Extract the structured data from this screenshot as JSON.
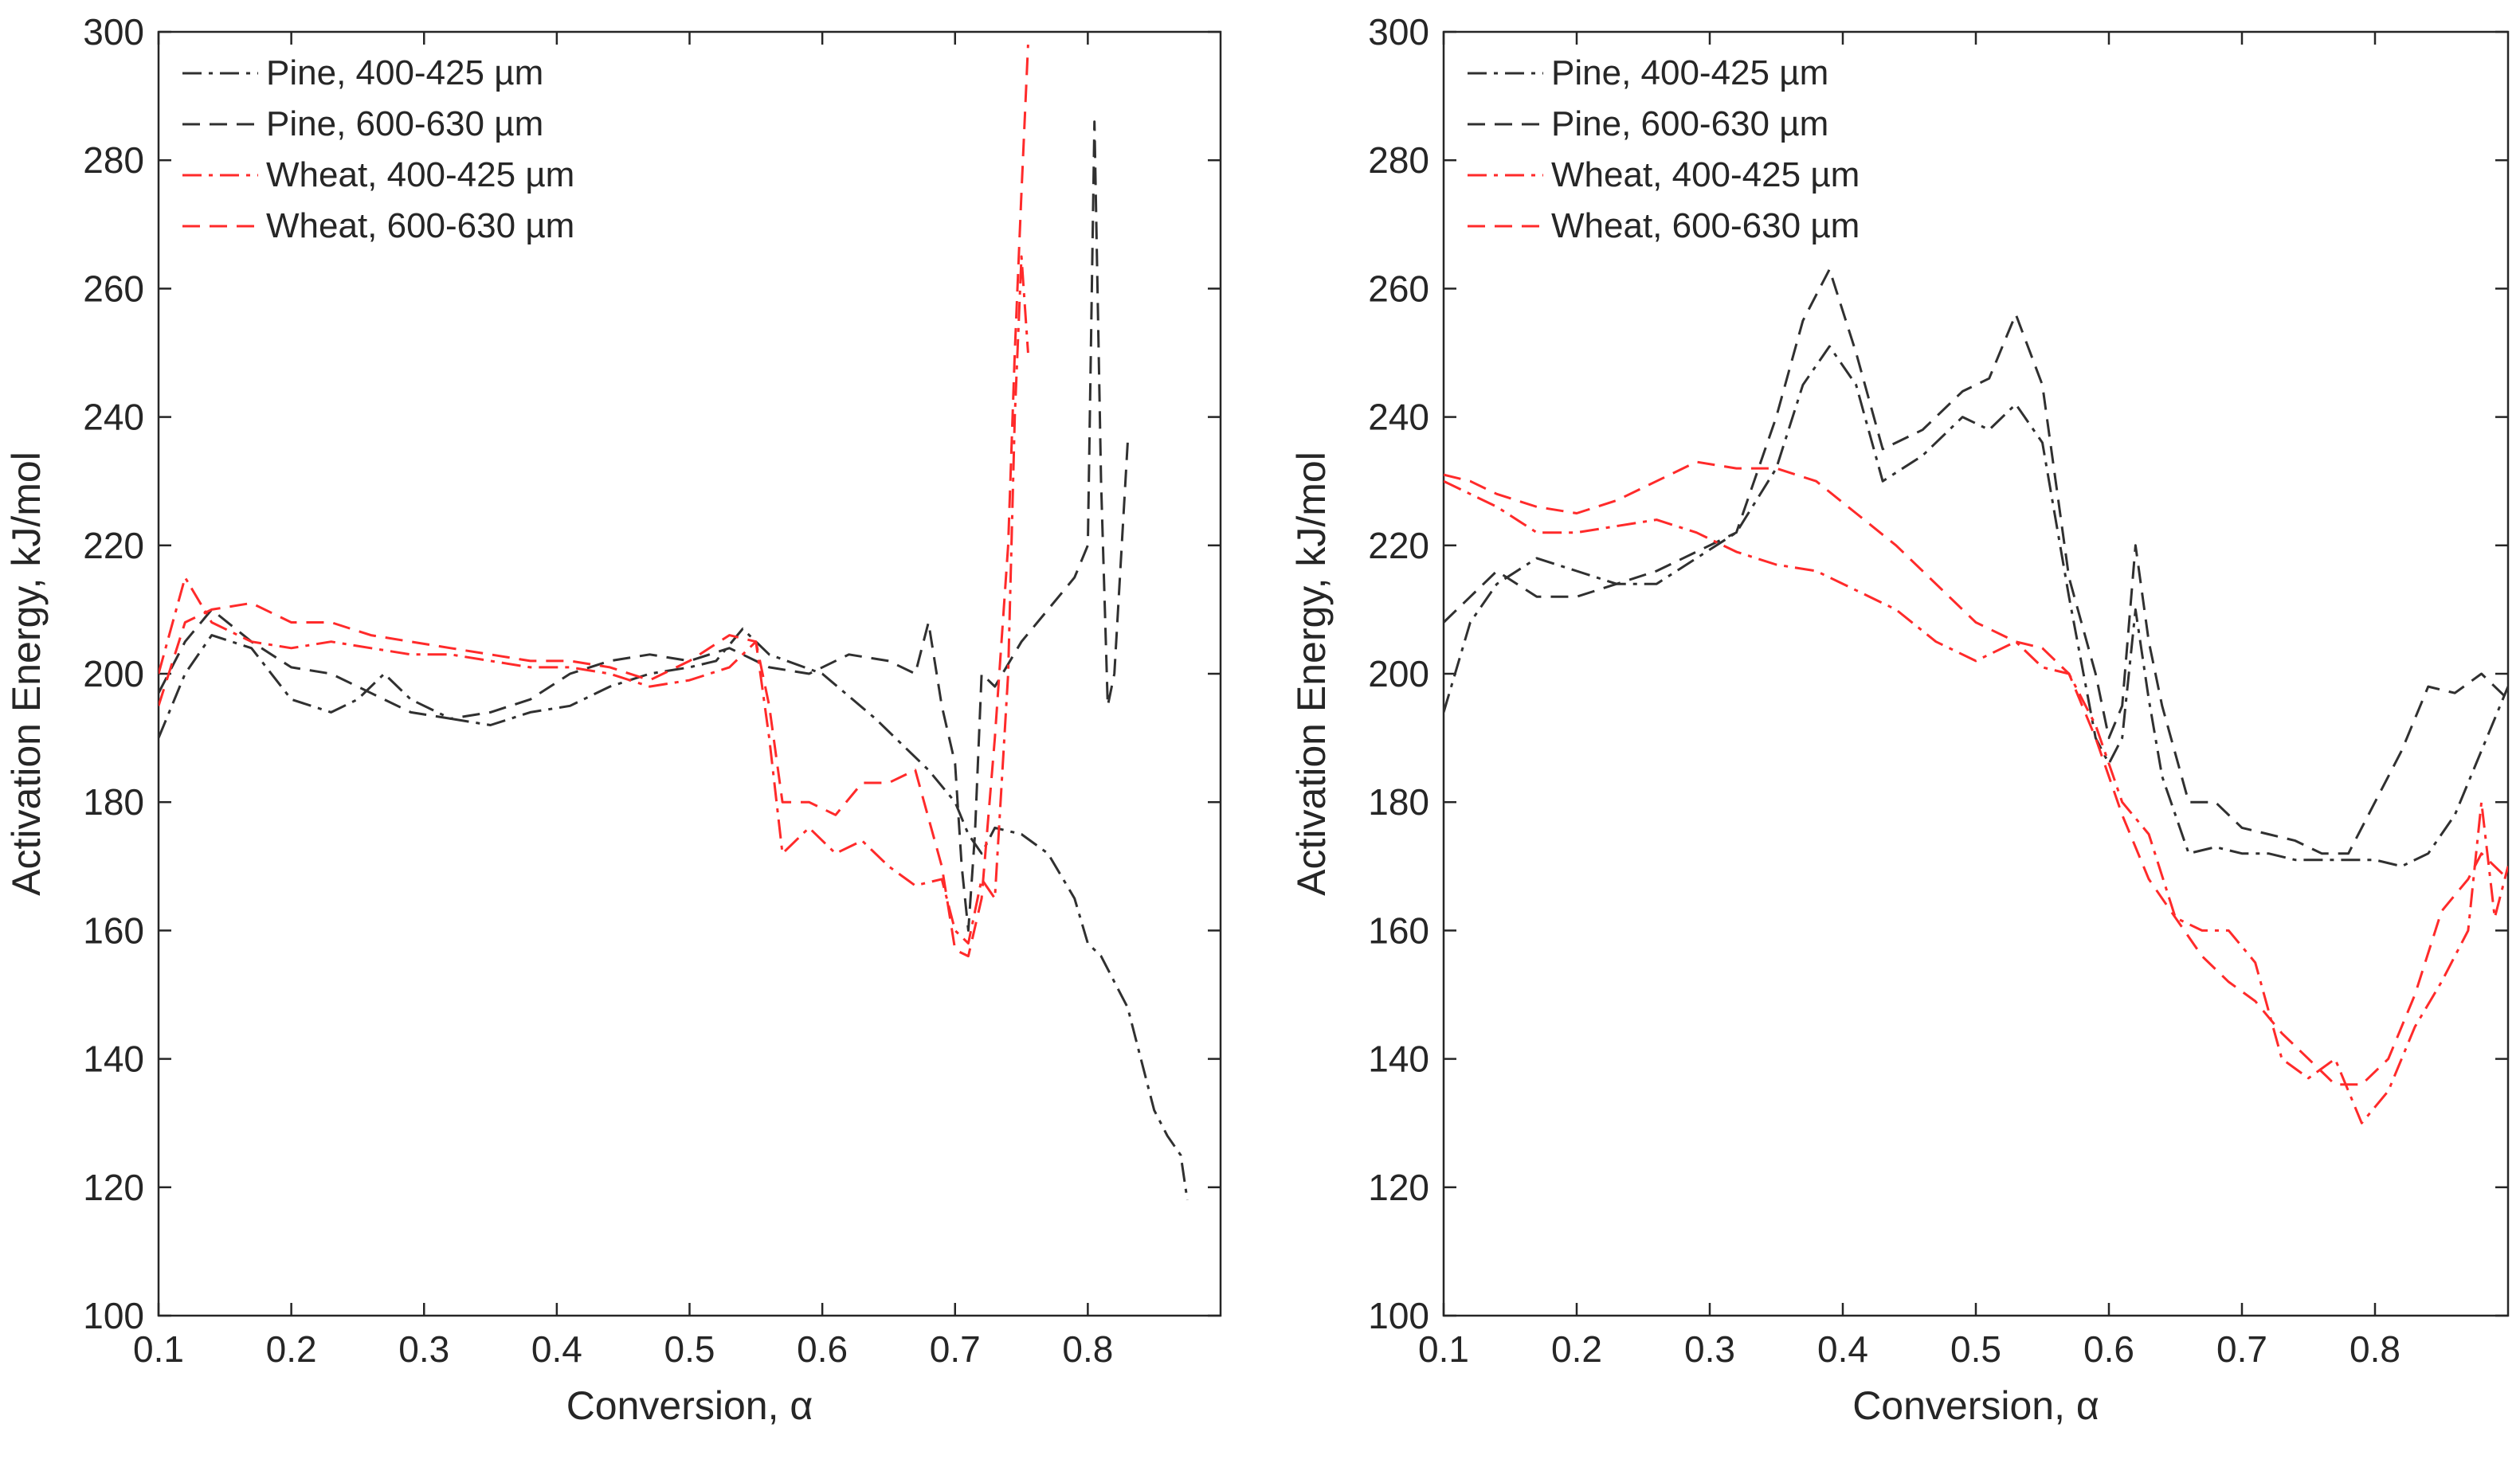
{
  "figure": {
    "colors": {
      "pine": "#303030",
      "wheat": "#ff2a2a",
      "axis": "#262626"
    }
  },
  "chart_data": [
    {
      "type": "line",
      "title": "",
      "xlabel": "Conversion, α",
      "ylabel": "Activation Energy, kJ/mol",
      "xlim": [
        0.1,
        0.9
      ],
      "ylim": [
        100,
        300
      ],
      "xticks": [
        "0.1",
        "0.2",
        "0.3",
        "0.4",
        "0.5",
        "0.6",
        "0.7",
        "0.8"
      ],
      "yticks": [
        "100",
        "120",
        "140",
        "160",
        "180",
        "200",
        "220",
        "240",
        "260",
        "280",
        "300"
      ],
      "legend_position": "top-left",
      "series": [
        {
          "name": "Pine, 400-425 µm",
          "color": "#303030",
          "dash": "dashdot",
          "x": [
            0.1,
            0.12,
            0.14,
            0.17,
            0.2,
            0.23,
            0.25,
            0.27,
            0.29,
            0.32,
            0.35,
            0.38,
            0.41,
            0.44,
            0.47,
            0.5,
            0.52,
            0.54,
            0.56,
            0.6,
            0.64,
            0.68,
            0.7,
            0.71,
            0.72,
            0.73,
            0.75,
            0.77,
            0.79,
            0.8,
            0.81,
            0.82,
            0.83,
            0.84,
            0.85,
            0.86,
            0.87,
            0.875
          ],
          "y": [
            190,
            200,
            206,
            204,
            196,
            194,
            196,
            200,
            196,
            193,
            192,
            194,
            195,
            198,
            200,
            201,
            202,
            207,
            203,
            200,
            193,
            185,
            180,
            175,
            172,
            176,
            175,
            172,
            165,
            158,
            156,
            152,
            148,
            140,
            132,
            128,
            125,
            118
          ]
        },
        {
          "name": "Pine, 600-630 µm",
          "color": "#303030",
          "dash": "dashed",
          "x": [
            0.1,
            0.12,
            0.14,
            0.17,
            0.2,
            0.23,
            0.26,
            0.29,
            0.32,
            0.35,
            0.38,
            0.41,
            0.44,
            0.47,
            0.5,
            0.53,
            0.56,
            0.59,
            0.62,
            0.65,
            0.67,
            0.68,
            0.69,
            0.7,
            0.705,
            0.71,
            0.715,
            0.72,
            0.73,
            0.75,
            0.77,
            0.79,
            0.8,
            0.805,
            0.81,
            0.815,
            0.82,
            0.83
          ],
          "y": [
            197,
            205,
            210,
            205,
            201,
            200,
            197,
            194,
            193,
            194,
            196,
            200,
            202,
            203,
            202,
            204,
            201,
            200,
            203,
            202,
            200,
            208,
            195,
            186,
            170,
            160,
            175,
            200,
            198,
            205,
            210,
            215,
            220,
            286,
            230,
            195,
            200,
            236
          ]
        },
        {
          "name": "Wheat, 400-425 µm",
          "color": "#ff2a2a",
          "dash": "dashdot",
          "x": [
            0.1,
            0.12,
            0.14,
            0.17,
            0.2,
            0.23,
            0.26,
            0.29,
            0.32,
            0.35,
            0.38,
            0.41,
            0.44,
            0.47,
            0.5,
            0.53,
            0.55,
            0.56,
            0.57,
            0.59,
            0.61,
            0.63,
            0.65,
            0.67,
            0.69,
            0.7,
            0.71,
            0.72,
            0.73,
            0.74,
            0.745,
            0.75,
            0.755
          ],
          "y": [
            200,
            215,
            208,
            205,
            204,
            205,
            204,
            203,
            203,
            202,
            201,
            201,
            200,
            198,
            199,
            201,
            205,
            190,
            172,
            176,
            172,
            174,
            170,
            167,
            168,
            160,
            158,
            168,
            165,
            200,
            240,
            265,
            250
          ]
        },
        {
          "name": "Wheat, 600-630 µm",
          "color": "#ff2a2a",
          "dash": "dashed",
          "x": [
            0.1,
            0.12,
            0.14,
            0.17,
            0.2,
            0.23,
            0.26,
            0.29,
            0.32,
            0.35,
            0.38,
            0.41,
            0.44,
            0.47,
            0.5,
            0.53,
            0.55,
            0.56,
            0.57,
            0.59,
            0.61,
            0.63,
            0.65,
            0.67,
            0.69,
            0.7,
            0.71,
            0.72,
            0.73,
            0.74,
            0.745,
            0.75,
            0.755
          ],
          "y": [
            195,
            208,
            210,
            211,
            208,
            208,
            206,
            205,
            204,
            203,
            202,
            202,
            201,
            199,
            202,
            206,
            205,
            195,
            180,
            180,
            178,
            183,
            183,
            185,
            170,
            157,
            156,
            165,
            190,
            220,
            250,
            275,
            298
          ]
        }
      ]
    },
    {
      "type": "line",
      "title": "",
      "xlabel": "Conversion, α",
      "ylabel": "Activation Energy, kJ/mol",
      "xlim": [
        0.1,
        0.9
      ],
      "ylim": [
        100,
        300
      ],
      "xticks": [
        "0.1",
        "0.2",
        "0.3",
        "0.4",
        "0.5",
        "0.6",
        "0.7",
        "0.8"
      ],
      "yticks": [
        "100",
        "120",
        "140",
        "160",
        "180",
        "200",
        "220",
        "240",
        "260",
        "280",
        "300"
      ],
      "legend_position": "top-left",
      "series": [
        {
          "name": "Pine, 400-425 µm",
          "color": "#303030",
          "dash": "dashdot",
          "x": [
            0.1,
            0.12,
            0.14,
            0.17,
            0.2,
            0.23,
            0.26,
            0.29,
            0.32,
            0.35,
            0.37,
            0.39,
            0.41,
            0.43,
            0.46,
            0.49,
            0.51,
            0.53,
            0.55,
            0.57,
            0.59,
            0.6,
            0.61,
            0.62,
            0.63,
            0.64,
            0.66,
            0.68,
            0.7,
            0.72,
            0.74,
            0.76,
            0.78,
            0.8,
            0.82,
            0.84,
            0.86,
            0.88,
            0.9
          ],
          "y": [
            194,
            208,
            214,
            218,
            216,
            214,
            214,
            218,
            222,
            232,
            245,
            251,
            245,
            230,
            234,
            240,
            238,
            242,
            236,
            212,
            190,
            186,
            190,
            210,
            196,
            184,
            172,
            173,
            172,
            172,
            171,
            171,
            171,
            171,
            170,
            172,
            178,
            188,
            198
          ]
        },
        {
          "name": "Pine, 600-630 µm",
          "color": "#303030",
          "dash": "dashed",
          "x": [
            0.1,
            0.12,
            0.14,
            0.17,
            0.2,
            0.23,
            0.26,
            0.29,
            0.32,
            0.35,
            0.37,
            0.39,
            0.41,
            0.43,
            0.46,
            0.49,
            0.51,
            0.53,
            0.55,
            0.57,
            0.59,
            0.6,
            0.61,
            0.62,
            0.63,
            0.64,
            0.66,
            0.68,
            0.7,
            0.72,
            0.74,
            0.76,
            0.78,
            0.8,
            0.82,
            0.84,
            0.86,
            0.88,
            0.9
          ],
          "y": [
            208,
            212,
            216,
            212,
            212,
            214,
            216,
            219,
            222,
            240,
            255,
            263,
            250,
            235,
            238,
            244,
            246,
            256,
            245,
            215,
            200,
            190,
            195,
            220,
            205,
            195,
            180,
            180,
            176,
            175,
            174,
            172,
            172,
            180,
            188,
            198,
            197,
            200,
            196
          ]
        },
        {
          "name": "Wheat, 400-425 µm",
          "color": "#ff2a2a",
          "dash": "dashdot",
          "x": [
            0.1,
            0.12,
            0.14,
            0.17,
            0.2,
            0.23,
            0.26,
            0.29,
            0.32,
            0.35,
            0.38,
            0.41,
            0.44,
            0.47,
            0.5,
            0.53,
            0.55,
            0.57,
            0.59,
            0.61,
            0.63,
            0.65,
            0.67,
            0.69,
            0.71,
            0.73,
            0.75,
            0.77,
            0.79,
            0.81,
            0.83,
            0.85,
            0.87,
            0.88,
            0.89,
            0.9
          ],
          "y": [
            230,
            228,
            226,
            222,
            222,
            223,
            224,
            222,
            219,
            217,
            216,
            213,
            210,
            205,
            202,
            205,
            201,
            200,
            192,
            180,
            175,
            162,
            160,
            160,
            155,
            140,
            137,
            140,
            130,
            135,
            145,
            152,
            160,
            180,
            162,
            170
          ]
        },
        {
          "name": "Wheat, 600-630 µm",
          "color": "#ff2a2a",
          "dash": "dashed",
          "x": [
            0.1,
            0.12,
            0.14,
            0.17,
            0.2,
            0.23,
            0.26,
            0.29,
            0.32,
            0.35,
            0.38,
            0.41,
            0.44,
            0.47,
            0.5,
            0.53,
            0.55,
            0.57,
            0.59,
            0.61,
            0.63,
            0.65,
            0.67,
            0.69,
            0.71,
            0.73,
            0.75,
            0.77,
            0.79,
            0.81,
            0.83,
            0.85,
            0.87,
            0.88,
            0.89,
            0.9
          ],
          "y": [
            231,
            230,
            228,
            226,
            225,
            227,
            230,
            233,
            232,
            232,
            230,
            225,
            220,
            214,
            208,
            205,
            204,
            200,
            190,
            178,
            168,
            162,
            156,
            152,
            149,
            144,
            140,
            136,
            136,
            140,
            150,
            163,
            168,
            172,
            170,
            168
          ]
        }
      ]
    }
  ]
}
